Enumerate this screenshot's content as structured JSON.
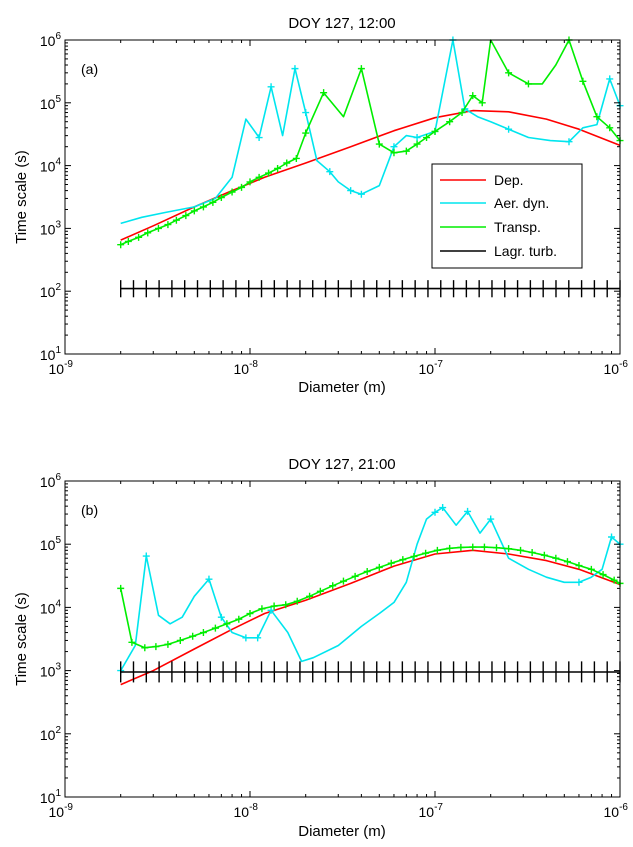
{
  "chart_data": [
    {
      "type": "line",
      "title": "DOY 127, 12:00",
      "panel_label": "(a)",
      "xlabel": "Diameter (m)",
      "ylabel": "Time scale (s)",
      "xscale": "log",
      "yscale": "log",
      "xlim": [
        1e-09,
        1e-06
      ],
      "ylim": [
        10,
        1000000
      ],
      "xtick_labels": [
        {
          "base": "10",
          "exp": "-9"
        },
        {
          "base": "10",
          "exp": "-8"
        },
        {
          "base": "10",
          "exp": "-7"
        },
        {
          "base": "10",
          "exp": "-6"
        }
      ],
      "ytick_labels": [
        {
          "base": "10",
          "exp": "1"
        },
        {
          "base": "10",
          "exp": "2"
        },
        {
          "base": "10",
          "exp": "3"
        },
        {
          "base": "10",
          "exp": "4"
        },
        {
          "base": "10",
          "exp": "5"
        },
        {
          "base": "10",
          "exp": "6"
        }
      ],
      "legend_position": "inside-right",
      "series": [
        {
          "name": "Dep.",
          "color": "#ff0000",
          "marker": "none",
          "x": [
            2e-09,
            3e-09,
            5e-09,
            8e-09,
            1.2e-08,
            2e-08,
            3.5e-08,
            6e-08,
            1e-07,
            1.6e-07,
            2.5e-07,
            4e-07,
            6e-07,
            1e-06
          ],
          "y": [
            650,
            1100,
            2200,
            4000,
            6500,
            11000,
            20000,
            36000,
            58000,
            75000,
            72000,
            55000,
            38000,
            21000
          ]
        },
        {
          "name": "Aer. dyn.",
          "color": "#00e5ee",
          "marker": "plus-sparse",
          "x": [
            2e-09,
            2.6e-09,
            3.5e-09,
            5e-09,
            6.5e-09,
            8e-09,
            9.5e-09,
            1.12e-08,
            1.3e-08,
            1.5e-08,
            1.75e-08,
            2e-08,
            2.3e-08,
            2.7e-08,
            3e-08,
            3.5e-08,
            4e-08,
            5e-08,
            6e-08,
            7e-08,
            8e-08,
            1e-07,
            1.25e-07,
            1.45e-07,
            1.7e-07,
            2e-07,
            2.5e-07,
            3.2e-07,
            4.2e-07,
            5.3e-07,
            6.3e-07,
            7.5e-07,
            8.8e-07,
            1e-06
          ],
          "y": [
            1200,
            1500,
            1800,
            2200,
            3000,
            6500,
            55000,
            28000,
            180000,
            30000,
            350000,
            70000,
            12000,
            8000,
            5500,
            4000,
            3500,
            4800,
            20000,
            30000,
            28000,
            35000,
            1000000,
            80000,
            60000,
            50000,
            38000,
            28000,
            25000,
            24000,
            40000,
            45000,
            240000,
            90000
          ],
          "marked_indices": [
            7,
            8,
            10,
            11,
            13,
            15,
            16,
            18,
            20,
            21,
            22,
            23,
            26,
            29,
            32,
            33
          ]
        },
        {
          "name": "Transp.",
          "color": "#00ee00",
          "marker": "plus",
          "x": [
            2e-09,
            2.2e-09,
            2.5e-09,
            2.8e-09,
            3.2e-09,
            3.6e-09,
            4e-09,
            4.5e-09,
            5e-09,
            5.6e-09,
            6.3e-09,
            7e-09,
            8e-09,
            9e-09,
            1e-08,
            1.12e-08,
            1.26e-08,
            1.41e-08,
            1.58e-08,
            1.78e-08,
            2e-08,
            2.5e-08,
            3.2e-08,
            4e-08,
            5e-08,
            6e-08,
            7e-08,
            8e-08,
            9e-08,
            1e-07,
            1.2e-07,
            1.4e-07,
            1.6e-07,
            1.8e-07,
            2e-07,
            2.5e-07,
            3.2e-07,
            3.8e-07,
            4.5e-07,
            5.3e-07,
            6.3e-07,
            7.5e-07,
            8.8e-07,
            1e-06
          ],
          "y": [
            550,
            620,
            720,
            850,
            1000,
            1150,
            1350,
            1600,
            1900,
            2200,
            2600,
            3100,
            3800,
            4500,
            5500,
            6500,
            7600,
            9000,
            11000,
            13000,
            33000,
            145000,
            60000,
            350000,
            22000,
            16000,
            17000,
            22000,
            28000,
            35000,
            50000,
            70000,
            130000,
            100000,
            1000000,
            300000,
            200000,
            200000,
            400000,
            1000000,
            220000,
            60000,
            40000,
            25000
          ],
          "marked_indices": [
            0,
            1,
            2,
            3,
            4,
            5,
            6,
            7,
            8,
            9,
            10,
            11,
            12,
            13,
            14,
            15,
            16,
            17,
            18,
            19,
            20,
            21,
            23,
            24,
            25,
            26,
            27,
            28,
            29,
            30,
            31,
            32,
            33,
            35,
            36,
            39,
            40,
            41,
            42,
            43
          ]
        },
        {
          "name": "Lagr. turb.",
          "color": "#000000",
          "marker": "tick",
          "x_range": [
            2e-09,
            1e-06
          ],
          "y": 110,
          "tick_low": 80,
          "tick_high": 150,
          "tick_count": 40
        }
      ]
    },
    {
      "type": "line",
      "title": "DOY 127, 21:00",
      "panel_label": "(b)",
      "xlabel": "Diameter (m)",
      "ylabel": "Time scale (s)",
      "xscale": "log",
      "yscale": "log",
      "xlim": [
        1e-09,
        1e-06
      ],
      "ylim": [
        10,
        1000000
      ],
      "xtick_labels": [
        {
          "base": "10",
          "exp": "-9"
        },
        {
          "base": "10",
          "exp": "-8"
        },
        {
          "base": "10",
          "exp": "-7"
        },
        {
          "base": "10",
          "exp": "-6"
        }
      ],
      "ytick_labels": [
        {
          "base": "10",
          "exp": "1"
        },
        {
          "base": "10",
          "exp": "2"
        },
        {
          "base": "10",
          "exp": "3"
        },
        {
          "base": "10",
          "exp": "4"
        },
        {
          "base": "10",
          "exp": "5"
        },
        {
          "base": "10",
          "exp": "6"
        }
      ],
      "series": [
        {
          "name": "Dep.",
          "color": "#ff0000",
          "marker": "none",
          "x": [
            2e-09,
            3e-09,
            5e-09,
            8e-09,
            1.2e-08,
            2e-08,
            3.5e-08,
            6e-08,
            1e-07,
            1.6e-07,
            2.5e-07,
            4e-07,
            6e-07,
            1e-06
          ],
          "y": [
            600,
            1000,
            2200,
            4500,
            8000,
            13000,
            24000,
            45000,
            70000,
            80000,
            70000,
            55000,
            40000,
            23000
          ]
        },
        {
          "name": "Aer. dyn.",
          "color": "#00e5ee",
          "marker": "plus-sparse",
          "x": [
            2e-09,
            2.4e-09,
            2.75e-09,
            3.2e-09,
            3.7e-09,
            4.3e-09,
            5e-09,
            6e-09,
            7e-09,
            8e-09,
            9.5e-09,
            1.1e-08,
            1.3e-08,
            1.6e-08,
            1.9e-08,
            2.2e-08,
            3e-08,
            4e-08,
            5e-08,
            6e-08,
            7e-08,
            8e-08,
            9e-08,
            1e-07,
            1.1e-07,
            1.3e-07,
            1.5e-07,
            1.75e-07,
            2e-07,
            2.5e-07,
            3.2e-07,
            4e-07,
            5e-07,
            6e-07,
            7e-07,
            8e-07,
            9e-07,
            1e-06
          ],
          "y": [
            1000,
            2500,
            65000,
            7500,
            5500,
            7000,
            15000,
            28000,
            7000,
            4000,
            3300,
            3300,
            9000,
            4000,
            1400,
            1600,
            2500,
            5000,
            8000,
            12000,
            25000,
            100000,
            250000,
            320000,
            380000,
            200000,
            330000,
            150000,
            250000,
            60000,
            40000,
            30000,
            25000,
            25000,
            30000,
            40000,
            130000,
            100000
          ],
          "marked_indices": [
            0,
            2,
            7,
            8,
            10,
            11,
            12,
            23,
            24,
            26,
            28,
            33,
            36,
            37
          ]
        },
        {
          "name": "Transp.",
          "color": "#00ee00",
          "marker": "plus",
          "x": [
            2e-09,
            2.3e-09,
            2.7e-09,
            3.1e-09,
            3.6e-09,
            4.2e-09,
            4.9e-09,
            5.6e-09,
            6.5e-09,
            7.5e-09,
            8.7e-09,
            1e-08,
            1.16e-08,
            1.35e-08,
            1.56e-08,
            1.8e-08,
            2.1e-08,
            2.4e-08,
            2.8e-08,
            3.2e-08,
            3.7e-08,
            4.3e-08,
            5e-08,
            5.8e-08,
            6.7e-08,
            7.7e-08,
            8.9e-08,
            1.03e-07,
            1.2e-07,
            1.38e-07,
            1.6e-07,
            1.85e-07,
            2.15e-07,
            2.5e-07,
            2.9e-07,
            3.35e-07,
            3.9e-07,
            4.5e-07,
            5.2e-07,
            6e-07,
            7e-07,
            8.1e-07,
            9.3e-07,
            1e-06
          ],
          "y": [
            20000,
            2800,
            2300,
            2400,
            2600,
            3000,
            3500,
            4000,
            4700,
            5500,
            6500,
            8000,
            9500,
            10500,
            11000,
            12500,
            15000,
            18000,
            22000,
            26000,
            31000,
            37000,
            43000,
            50000,
            57000,
            64000,
            72000,
            80000,
            86000,
            89000,
            90000,
            90000,
            88000,
            85000,
            80000,
            74000,
            67000,
            60000,
            53000,
            46000,
            40000,
            33000,
            27000,
            24000
          ],
          "marked_indices": "all"
        },
        {
          "name": "Lagr. turb.",
          "color": "#000000",
          "marker": "tick",
          "x_range": [
            2e-09,
            1e-06
          ],
          "y": 950,
          "tick_low": 650,
          "tick_high": 1400,
          "tick_count": 40
        }
      ]
    }
  ]
}
